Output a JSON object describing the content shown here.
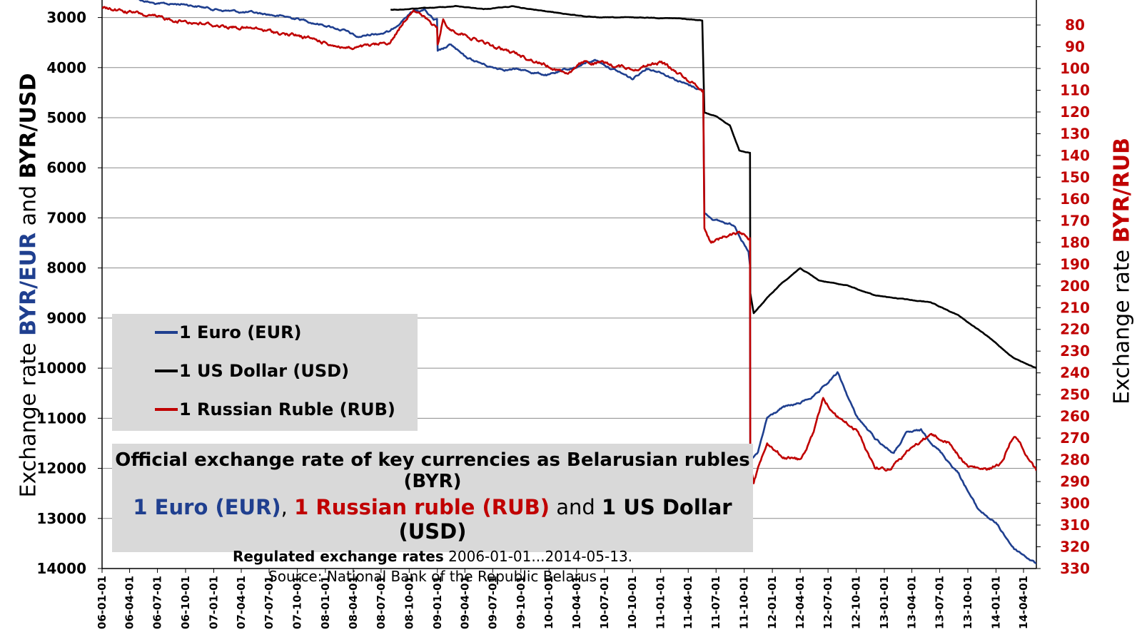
{
  "chart_data": {
    "type": "line",
    "title": "Official exchange rate of key currencies as Belarusian rubles (BYR)",
    "subtitle_parts": [
      {
        "text": "1 Euro (EUR)",
        "color": "#1f3f8f",
        "bold": true
      },
      {
        "text": ", ",
        "color": "#000000",
        "bold": false
      },
      {
        "text": "1 Russian ruble (RUB)",
        "color": "#c00000",
        "bold": true
      },
      {
        "text": " and ",
        "color": "#000000",
        "bold": false
      },
      {
        "text": "1 US Dollar (USD)",
        "color": "#000000",
        "bold": true
      }
    ],
    "note_bold": "Regulated exchange rates",
    "note_rest": " 2006-01-01...2014-05-13.",
    "source": "Source: National Bank of the Republic Belarus",
    "ylabel_left_parts": [
      {
        "text": "Exchange  rate ",
        "color": "#000000",
        "bold": false
      },
      {
        "text": "BYR/EUR",
        "color": "#1f3f8f",
        "bold": true
      },
      {
        "text": " and ",
        "color": "#000000",
        "bold": false
      },
      {
        "text": "BYR/USD",
        "color": "#000000",
        "bold": true
      }
    ],
    "ylabel_right_parts": [
      {
        "text": "Exchange  rate ",
        "color": "#000000",
        "bold": false
      },
      {
        "text": "BYR/RUB",
        "color": "#c00000",
        "bold": true
      }
    ],
    "y_left": {
      "min": 2650,
      "max": 14000,
      "reversed": true,
      "ticks": [
        3000,
        4000,
        5000,
        6000,
        7000,
        8000,
        9000,
        10000,
        11000,
        12000,
        13000,
        14000
      ]
    },
    "y_right": {
      "min": 68.5,
      "max": 330,
      "reversed": true,
      "ticks": [
        80,
        90,
        100,
        110,
        120,
        130,
        140,
        150,
        160,
        170,
        180,
        190,
        200,
        210,
        220,
        230,
        240,
        250,
        260,
        270,
        280,
        290,
        300,
        310,
        320,
        330
      ]
    },
    "x_range": [
      "2006-01-01",
      "2014-05-13"
    ],
    "x_ticks": [
      "06-01-01",
      "06-04-01",
      "06-07-01",
      "06-10-01",
      "07-01-01",
      "07-04-01",
      "07-07-01",
      "07-10-01",
      "08-01-01",
      "08-04-01",
      "08-07-01",
      "08-10-01",
      "09-01-01",
      "09-04-01",
      "09-07-01",
      "09-10-01",
      "10-01-01",
      "10-04-01",
      "10-07-01",
      "10-10-01",
      "11-01-01",
      "11-04-01",
      "11-07-01",
      "11-10-01",
      "12-01-01",
      "12-04-01",
      "12-07-01",
      "12-10-01",
      "13-01-01",
      "13-04-01",
      "13-07-01",
      "13-10-01",
      "14-01-01",
      "14-04-01"
    ],
    "grid": true,
    "legend_placement": "left-center",
    "series": [
      {
        "name": "1 Euro (EUR)",
        "axis": "left",
        "color": "#1f3f8f",
        "jitter": 30,
        "points": [
          [
            "2006-01-01",
            2540
          ],
          [
            "2006-04-01",
            2580
          ],
          [
            "2006-07-01",
            2740
          ],
          [
            "2006-10-01",
            2730
          ],
          [
            "2007-01-01",
            2830
          ],
          [
            "2007-04-01",
            2890
          ],
          [
            "2007-07-01",
            2940
          ],
          [
            "2007-10-01",
            3020
          ],
          [
            "2008-01-01",
            3150
          ],
          [
            "2008-03-01",
            3250
          ],
          [
            "2008-04-15",
            3400
          ],
          [
            "2008-06-01",
            3330
          ],
          [
            "2008-08-01",
            3280
          ],
          [
            "2008-09-15",
            3000
          ],
          [
            "2008-10-15",
            2870
          ],
          [
            "2008-11-20",
            2840
          ],
          [
            "2008-12-20",
            3050
          ],
          [
            "2008-12-31",
            3060
          ],
          [
            "2009-01-02",
            3700
          ],
          [
            "2009-02-15",
            3550
          ],
          [
            "2009-04-01",
            3800
          ],
          [
            "2009-07-01",
            4000
          ],
          [
            "2009-10-01",
            4050
          ],
          [
            "2010-01-01",
            4150
          ],
          [
            "2010-04-01",
            3990
          ],
          [
            "2010-06-01",
            3840
          ],
          [
            "2010-07-15",
            3980
          ],
          [
            "2010-10-01",
            4230
          ],
          [
            "2010-11-15",
            4000
          ],
          [
            "2011-01-01",
            4080
          ],
          [
            "2011-04-01",
            4350
          ],
          [
            "2011-05-20",
            4450
          ],
          [
            "2011-05-24",
            6900
          ],
          [
            "2011-07-01",
            7050
          ],
          [
            "2011-09-01",
            7150
          ],
          [
            "2011-10-15",
            7700
          ],
          [
            "2011-10-20",
            7950
          ],
          [
            "2011-10-21",
            11850
          ],
          [
            "2011-11-15",
            11700
          ],
          [
            "2011-12-15",
            11000
          ],
          [
            "2012-02-01",
            10800
          ],
          [
            "2012-04-01",
            10700
          ],
          [
            "2012-06-01",
            10500
          ],
          [
            "2012-08-01",
            10100
          ],
          [
            "2012-10-01",
            10950
          ],
          [
            "2012-12-01",
            11400
          ],
          [
            "2013-02-01",
            11700
          ],
          [
            "2013-03-15",
            11300
          ],
          [
            "2013-05-01",
            11250
          ],
          [
            "2013-07-01",
            11650
          ],
          [
            "2013-09-01",
            12100
          ],
          [
            "2013-11-01",
            12800
          ],
          [
            "2014-01-01",
            13100
          ],
          [
            "2014-03-01",
            13600
          ],
          [
            "2014-05-13",
            13900
          ]
        ]
      },
      {
        "name": "1 US Dollar (USD)",
        "axis": "left",
        "color": "#000000",
        "jitter": 8,
        "points": [
          [
            "2008-08-01",
            2850
          ],
          [
            "2008-12-31",
            2800
          ],
          [
            "2009-03-01",
            2770
          ],
          [
            "2009-06-01",
            2830
          ],
          [
            "2009-09-01",
            2780
          ],
          [
            "2009-12-01",
            2860
          ],
          [
            "2010-03-01",
            2930
          ],
          [
            "2010-06-01",
            3000
          ],
          [
            "2010-09-01",
            3000
          ],
          [
            "2010-12-01",
            3000
          ],
          [
            "2011-03-01",
            3020
          ],
          [
            "2011-05-17",
            3060
          ],
          [
            "2011-05-24",
            4900
          ],
          [
            "2011-07-01",
            4970
          ],
          [
            "2011-08-15",
            5150
          ],
          [
            "2011-09-15",
            5650
          ],
          [
            "2011-10-20",
            5700
          ],
          [
            "2011-10-21",
            8500
          ],
          [
            "2011-11-01",
            8900
          ],
          [
            "2011-12-15",
            8600
          ],
          [
            "2012-02-01",
            8300
          ],
          [
            "2012-04-01",
            8000
          ],
          [
            "2012-06-01",
            8250
          ],
          [
            "2012-09-01",
            8350
          ],
          [
            "2012-12-01",
            8550
          ],
          [
            "2013-03-01",
            8620
          ],
          [
            "2013-06-01",
            8680
          ],
          [
            "2013-09-01",
            8950
          ],
          [
            "2013-12-01",
            9350
          ],
          [
            "2014-03-01",
            9800
          ],
          [
            "2014-05-13",
            10000
          ]
        ]
      },
      {
        "name": "1 Russian Ruble (RUB)",
        "axis": "right",
        "color": "#c00000",
        "jitter": 1.1,
        "points": [
          [
            "2006-01-01",
            72
          ],
          [
            "2006-04-01",
            74
          ],
          [
            "2006-07-01",
            77
          ],
          [
            "2006-10-01",
            78
          ],
          [
            "2007-01-01",
            80
          ],
          [
            "2007-04-01",
            81
          ],
          [
            "2007-07-01",
            83
          ],
          [
            "2007-10-01",
            85
          ],
          [
            "2008-01-01",
            88
          ],
          [
            "2008-04-01",
            91
          ],
          [
            "2008-06-01",
            90
          ],
          [
            "2008-08-01",
            88
          ],
          [
            "2008-09-15",
            78
          ],
          [
            "2008-10-15",
            72
          ],
          [
            "2008-12-15",
            80
          ],
          [
            "2008-12-31",
            82
          ],
          [
            "2009-01-02",
            90
          ],
          [
            "2009-01-20",
            78
          ],
          [
            "2009-02-10",
            82
          ],
          [
            "2009-04-01",
            84
          ],
          [
            "2009-07-01",
            90
          ],
          [
            "2009-10-01",
            94
          ],
          [
            "2010-01-01",
            99
          ],
          [
            "2010-03-01",
            102
          ],
          [
            "2010-05-01",
            97
          ],
          [
            "2010-07-01",
            98
          ],
          [
            "2010-10-01",
            100
          ],
          [
            "2011-01-01",
            97
          ],
          [
            "2011-04-01",
            105
          ],
          [
            "2011-05-20",
            110
          ],
          [
            "2011-05-24",
            173
          ],
          [
            "2011-06-15",
            180
          ],
          [
            "2011-08-01",
            177
          ],
          [
            "2011-09-15",
            175
          ],
          [
            "2011-10-20",
            178
          ],
          [
            "2011-10-21",
            280
          ],
          [
            "2011-11-01",
            290
          ],
          [
            "2011-12-15",
            271
          ],
          [
            "2012-02-01",
            278
          ],
          [
            "2012-04-01",
            280
          ],
          [
            "2012-05-15",
            268
          ],
          [
            "2012-06-15",
            252
          ],
          [
            "2012-08-01",
            260
          ],
          [
            "2012-10-01",
            266
          ],
          [
            "2012-12-01",
            283
          ],
          [
            "2013-01-15",
            284
          ],
          [
            "2013-03-01",
            278
          ],
          [
            "2013-06-01",
            268
          ],
          [
            "2013-08-01",
            272
          ],
          [
            "2013-10-01",
            283
          ],
          [
            "2013-12-01",
            285
          ],
          [
            "2014-01-15",
            282
          ],
          [
            "2014-03-01",
            268
          ],
          [
            "2014-04-15",
            278
          ],
          [
            "2014-05-13",
            285
          ]
        ]
      }
    ]
  },
  "legend": [
    {
      "label": "1 Euro (EUR)",
      "color": "#1f3f8f"
    },
    {
      "label": "1 US Dollar (USD)",
      "color": "#000000"
    },
    {
      "label": "1 Russian Ruble (RUB)",
      "color": "#c00000"
    }
  ]
}
